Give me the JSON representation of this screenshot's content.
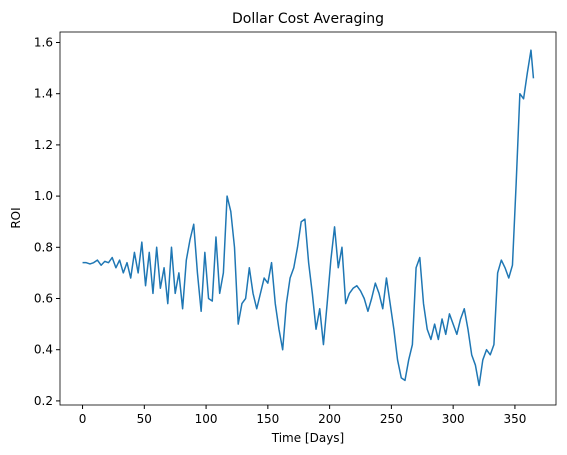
{
  "chart_data": {
    "type": "line",
    "title": "Dollar Cost Averaging",
    "x_label": "Time [Days]",
    "y_label": "ROI",
    "series": [
      {
        "color": "#1f77b4",
        "x": [
          0,
          3,
          6,
          9,
          12,
          15,
          18,
          21,
          24,
          27,
          30,
          33,
          36,
          39,
          42,
          45,
          48,
          51,
          54,
          57,
          60,
          63,
          66,
          69,
          72,
          75,
          78,
          81,
          84,
          87,
          90,
          93,
          96,
          99,
          102,
          105,
          108,
          111,
          114,
          117,
          120,
          123,
          126,
          129,
          132,
          135,
          138,
          141,
          144,
          147,
          150,
          153,
          156,
          159,
          162,
          165,
          168,
          171,
          174,
          177,
          180,
          183,
          186,
          189,
          192,
          195,
          198,
          201,
          204,
          207,
          210,
          213,
          216,
          219,
          222,
          225,
          228,
          231,
          234,
          237,
          240,
          243,
          246,
          249,
          252,
          255,
          258,
          261,
          264,
          267,
          270,
          273,
          276,
          279,
          282,
          285,
          288,
          291,
          294,
          297,
          300,
          303,
          306,
          309,
          312,
          315,
          318,
          321,
          324,
          327,
          330,
          333,
          336,
          339,
          342,
          345,
          348,
          351,
          354,
          357,
          360,
          363,
          365
        ],
        "values": [
          0.74,
          0.74,
          0.735,
          0.74,
          0.75,
          0.73,
          0.745,
          0.74,
          0.76,
          0.72,
          0.75,
          0.7,
          0.74,
          0.68,
          0.78,
          0.7,
          0.82,
          0.65,
          0.78,
          0.62,
          0.8,
          0.64,
          0.72,
          0.58,
          0.8,
          0.62,
          0.7,
          0.56,
          0.75,
          0.83,
          0.89,
          0.7,
          0.55,
          0.78,
          0.6,
          0.59,
          0.84,
          0.62,
          0.7,
          1.0,
          0.94,
          0.8,
          0.5,
          0.58,
          0.6,
          0.72,
          0.62,
          0.56,
          0.62,
          0.68,
          0.66,
          0.74,
          0.58,
          0.48,
          0.4,
          0.58,
          0.68,
          0.72,
          0.8,
          0.9,
          0.91,
          0.74,
          0.62,
          0.48,
          0.56,
          0.42,
          0.58,
          0.75,
          0.88,
          0.72,
          0.8,
          0.58,
          0.62,
          0.64,
          0.65,
          0.63,
          0.6,
          0.55,
          0.6,
          0.66,
          0.62,
          0.56,
          0.68,
          0.58,
          0.48,
          0.36,
          0.29,
          0.28,
          0.36,
          0.42,
          0.72,
          0.76,
          0.58,
          0.48,
          0.44,
          0.5,
          0.44,
          0.52,
          0.46,
          0.54,
          0.5,
          0.46,
          0.52,
          0.56,
          0.48,
          0.38,
          0.34,
          0.26,
          0.36,
          0.4,
          0.38,
          0.42,
          0.7,
          0.75,
          0.72,
          0.68,
          0.73,
          1.05,
          1.4,
          1.38,
          1.48,
          1.57,
          1.46
        ]
      }
    ],
    "xlim": [
      -18.25,
      383.25
    ],
    "xticks": [
      0,
      50,
      100,
      150,
      200,
      250,
      300,
      350
    ],
    "ylim": [
      0.184,
      1.641
    ],
    "yticks": [
      0.2,
      0.4,
      0.6,
      0.8,
      {
        "value": 1,
        "label": "1.0"
      },
      1.2,
      1.4,
      1.6
    ]
  }
}
